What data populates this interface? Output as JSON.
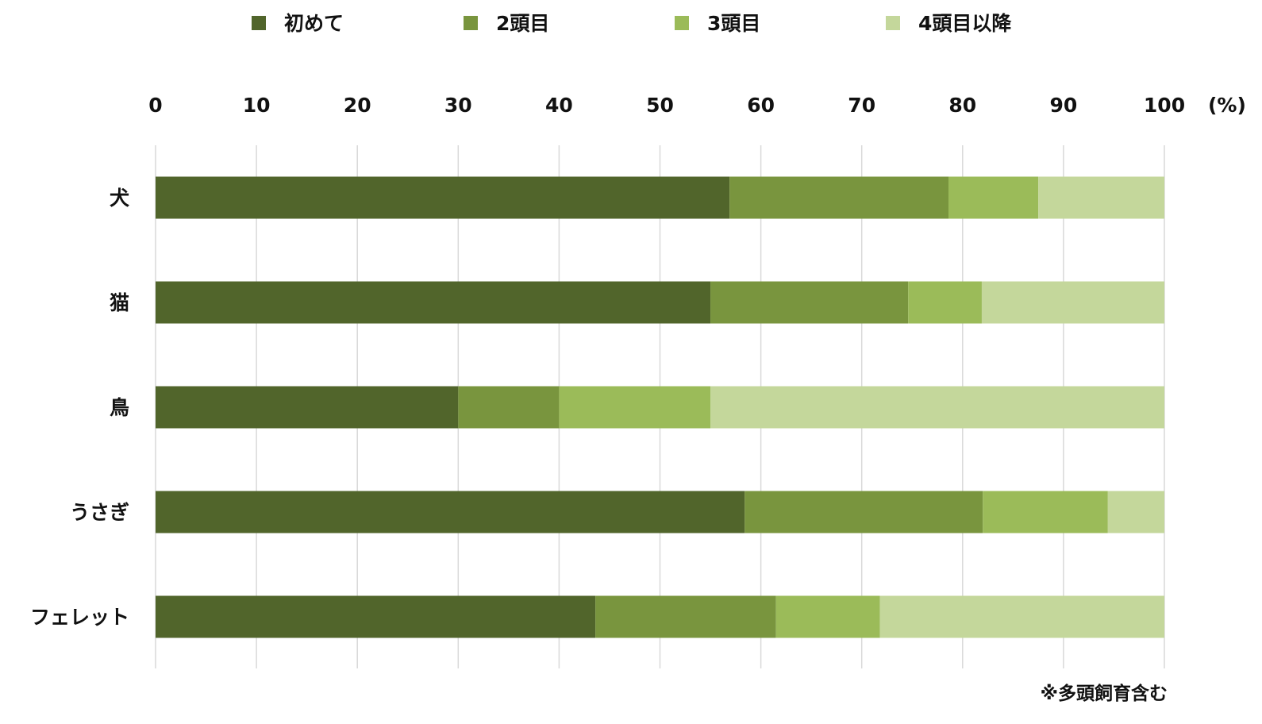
{
  "chart_data": {
    "type": "bar",
    "orientation": "horizontal",
    "stacked": true,
    "categories": [
      "犬",
      "猫",
      "鳥",
      "うさぎ",
      "フェレット"
    ],
    "series": [
      {
        "name": "初めて",
        "color": "#51652b",
        "values": [
          56.9,
          55.0,
          30.0,
          58.4,
          43.6
        ]
      },
      {
        "name": "2頭目",
        "color": "#79953e",
        "values": [
          21.7,
          19.6,
          10.0,
          23.6,
          17.9
        ]
      },
      {
        "name": "3頭目",
        "color": "#9bbb59",
        "values": [
          8.9,
          7.3,
          15.0,
          12.4,
          10.3
        ]
      },
      {
        "name": "4頭目以降",
        "color": "#c4d79b",
        "values": [
          12.5,
          18.1,
          45.0,
          5.6,
          28.2
        ]
      }
    ],
    "xlim": [
      0,
      100
    ],
    "xticks": [
      "0",
      "10",
      "20",
      "30",
      "40",
      "50",
      "60",
      "70",
      "80",
      "90",
      "100"
    ],
    "x_unit": "(%)",
    "grid": true,
    "legend_position": "top",
    "note": "※多頭飼育含む"
  }
}
